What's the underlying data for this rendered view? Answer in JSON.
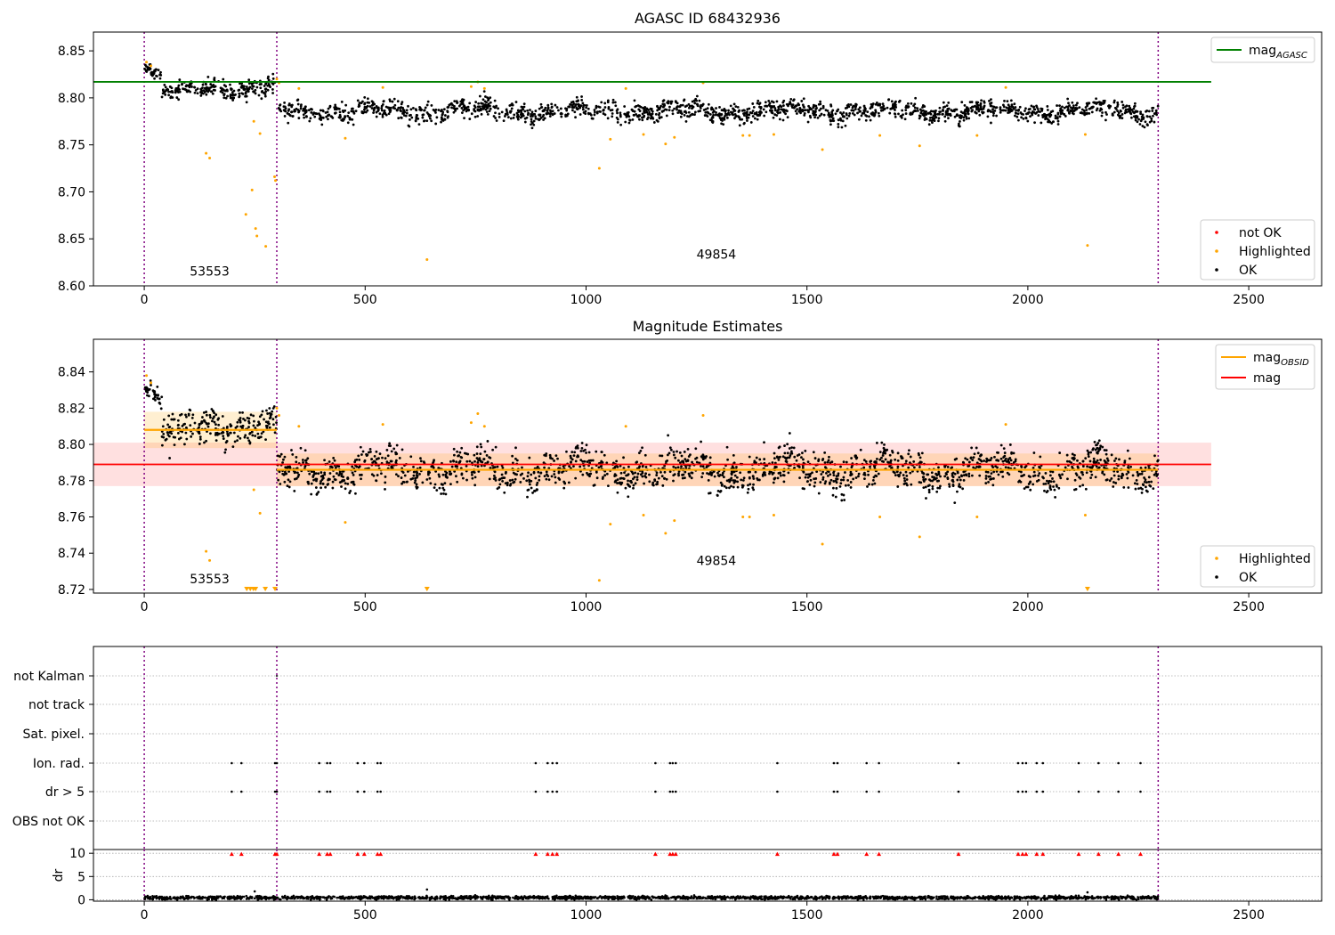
{
  "chart_data": [
    {
      "type": "scatter",
      "title": "AGASC ID 68432936",
      "xlim": [
        -115,
        2665
      ],
      "ylim": [
        8.6,
        8.87
      ],
      "xticks": [
        0,
        500,
        1000,
        1500,
        2000,
        2500
      ],
      "yticks": [
        8.6,
        8.65,
        8.7,
        8.75,
        8.8,
        8.85
      ],
      "ytick_labels": [
        "8.60",
        "8.65",
        "8.70",
        "8.75",
        "8.80",
        "8.85"
      ],
      "vlines": [
        0,
        300,
        2295
      ],
      "hline": {
        "name": "mag_AGASC",
        "label": "mag",
        "label_sub": "AGASC",
        "y": 8.817,
        "x_range": [
          -115,
          2415
        ],
        "color": "#008000"
      },
      "legend_lines": [
        {
          "label": "mag",
          "sub": "AGASC",
          "color": "#008000"
        }
      ],
      "legend_points": [
        {
          "label": "not OK",
          "color": "#ff0000"
        },
        {
          "label": "Highlighted",
          "color": "#ffa500"
        },
        {
          "label": "OK",
          "color": "#000000"
        }
      ],
      "annotations": [
        {
          "text": "53553",
          "x": 148,
          "y": 8.611
        },
        {
          "text": "49854",
          "x": 1295,
          "y": 8.629
        }
      ],
      "series": [
        {
          "name": "OK",
          "segments": [
            {
              "x_range": [
                0,
                15
              ],
              "y_center": 8.828,
              "noise": 0.004
            },
            {
              "x_range": [
                15,
                40
              ],
              "y_center": 8.822,
              "noise": 0.005
            },
            {
              "x_range": [
                40,
                100
              ],
              "y_center": 8.805,
              "noise": 0.008
            },
            {
              "x_range": [
                100,
                200
              ],
              "y_center": 8.812,
              "noise": 0.007
            },
            {
              "x_range": [
                200,
                300
              ],
              "y_center": 8.808,
              "noise": 0.008
            },
            {
              "x_range": [
                300,
                2295
              ],
              "y_center": 8.786,
              "noise": 0.008
            }
          ]
        },
        {
          "name": "Highlighted",
          "points": [
            [
              5,
              8.838
            ],
            [
              15,
              8.834
            ],
            [
              140,
              8.741
            ],
            [
              148,
              8.736
            ],
            [
              230,
              8.676
            ],
            [
              244,
              8.702
            ],
            [
              248,
              8.775
            ],
            [
              252,
              8.661
            ],
            [
              255,
              8.653
            ],
            [
              262,
              8.762
            ],
            [
              275,
              8.642
            ],
            [
              295,
              8.716
            ],
            [
              297,
              8.712
            ],
            [
              300,
              8.82
            ],
            [
              305,
              8.816
            ],
            [
              350,
              8.81
            ],
            [
              455,
              8.757
            ],
            [
              540,
              8.811
            ],
            [
              640,
              8.628
            ],
            [
              740,
              8.812
            ],
            [
              755,
              8.817
            ],
            [
              770,
              8.81
            ],
            [
              1030,
              8.725
            ],
            [
              1055,
              8.756
            ],
            [
              1090,
              8.81
            ],
            [
              1130,
              8.761
            ],
            [
              1180,
              8.751
            ],
            [
              1200,
              8.758
            ],
            [
              1265,
              8.816
            ],
            [
              1355,
              8.76
            ],
            [
              1370,
              8.76
            ],
            [
              1425,
              8.761
            ],
            [
              1535,
              8.745
            ],
            [
              1665,
              8.76
            ],
            [
              1755,
              8.749
            ],
            [
              1885,
              8.76
            ],
            [
              1950,
              8.811
            ],
            [
              2130,
              8.761
            ],
            [
              2135,
              8.643
            ]
          ]
        }
      ]
    },
    {
      "type": "scatter",
      "title": "Magnitude Estimates",
      "xlim": [
        -115,
        2665
      ],
      "ylim": [
        8.718,
        8.858
      ],
      "xticks": [
        0,
        500,
        1000,
        1500,
        2000,
        2500
      ],
      "yticks": [
        8.72,
        8.74,
        8.76,
        8.78,
        8.8,
        8.82,
        8.84
      ],
      "ytick_labels": [
        "8.72",
        "8.74",
        "8.76",
        "8.78",
        "8.80",
        "8.82",
        "8.84"
      ],
      "vlines": [
        0,
        300,
        2295
      ],
      "mag": {
        "value": 8.789,
        "band": [
          8.777,
          8.801
        ],
        "x_range": [
          -115,
          2415
        ],
        "color": "#ff0000"
      },
      "mag_obsid": [
        {
          "x_range": [
            0,
            300
          ],
          "value": 8.808,
          "band": [
            8.798,
            8.818
          ]
        },
        {
          "x_range": [
            300,
            2295
          ],
          "value": 8.786,
          "band": [
            8.777,
            8.795
          ]
        }
      ],
      "legend_lines": [
        {
          "label": "mag",
          "sub": "OBSID",
          "color": "#ffa500"
        },
        {
          "label": "mag",
          "sub": "",
          "color": "#ff0000"
        }
      ],
      "legend_points": [
        {
          "label": "Highlighted",
          "color": "#ffa500"
        },
        {
          "label": "OK",
          "color": "#000000"
        }
      ],
      "annotations": [
        {
          "text": "53553",
          "x": 148,
          "y": 8.7235
        },
        {
          "text": "49854",
          "x": 1295,
          "y": 8.7335
        }
      ],
      "clipped_markers_x": [
        232,
        240,
        247,
        252,
        274,
        296,
        640,
        2135
      ]
    },
    {
      "type": "scatter",
      "title": "",
      "xlim": [
        -115,
        2665
      ],
      "categories": [
        "not Kalman",
        "not track",
        "Sat. pixel.",
        "Ion. rad.",
        "dr > 5",
        "OBS not OK"
      ],
      "vlines": [
        0,
        300,
        2295
      ],
      "flag_x": [
        198,
        220,
        296,
        300,
        396,
        414,
        421,
        483,
        498,
        528,
        535,
        886,
        913,
        924,
        934,
        1157,
        1190,
        1196,
        1203,
        1433,
        1561,
        1569,
        1635,
        1663,
        1843,
        1978,
        1988,
        1996,
        2020,
        2034,
        2115,
        2160,
        2205,
        2255
      ],
      "not_kalman_x": [
        300
      ]
    },
    {
      "type": "scatter",
      "title": "",
      "ylabel": "dr",
      "xlim": [
        -115,
        2665
      ],
      "ylim": [
        -0.3,
        10.8
      ],
      "xticks": [
        0,
        500,
        1000,
        1500,
        2000,
        2500
      ],
      "yticks": [
        0,
        5,
        10
      ],
      "vlines": [
        0,
        300,
        2295
      ],
      "dr_baseline": {
        "y_center": 0.45,
        "noise": 0.3
      },
      "dr_outliers": [
        [
          250,
          1.8
        ],
        [
          640,
          2.2
        ],
        [
          2135,
          1.6
        ]
      ],
      "clipped_red_x": [
        198,
        220,
        296,
        300,
        396,
        414,
        421,
        483,
        498,
        528,
        535,
        886,
        913,
        924,
        934,
        1157,
        1190,
        1196,
        1203,
        1433,
        1561,
        1569,
        1635,
        1663,
        1843,
        1978,
        1988,
        1996,
        2020,
        2034,
        2115,
        2160,
        2205,
        2255
      ]
    }
  ]
}
